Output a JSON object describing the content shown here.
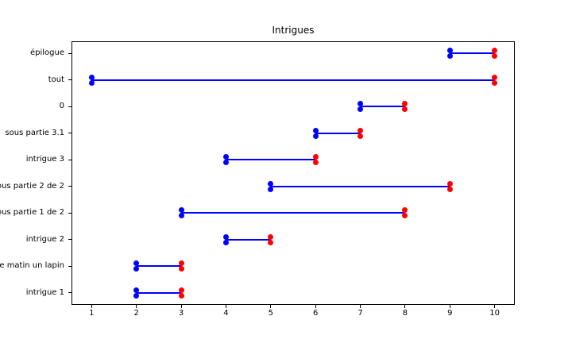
{
  "title": "Intrigues",
  "chart_data": {
    "type": "line",
    "variant": "horizontal-range-gantt",
    "title": "Intrigues",
    "categories_top_to_bottom": [
      "épilogue",
      "tout",
      "0",
      "sous partie 3.1",
      "intrigue 3",
      "ous partie 2 de 2",
      "ous partie 1 de 2",
      "intrigue 2",
      "e matin un lapin",
      "intrigue 1"
    ],
    "ranges_start_end": [
      [
        9,
        10
      ],
      [
        1,
        10
      ],
      [
        7,
        8
      ],
      [
        6,
        7
      ],
      [
        4,
        6
      ],
      [
        5,
        9
      ],
      [
        3,
        8
      ],
      [
        4,
        5
      ],
      [
        2,
        3
      ],
      [
        2,
        3
      ]
    ],
    "x_ticks": [
      1,
      2,
      3,
      4,
      5,
      6,
      7,
      8,
      9,
      10
    ],
    "xlim": [
      0.55,
      10.45
    ],
    "grid": false,
    "legend": null,
    "marker_style": "double dot above and below line at each endpoint",
    "colors": {
      "line": "#0000ff",
      "start_marker": "#0000ff",
      "end_marker": "#ff0000",
      "axis": "#000000",
      "text": "#000000",
      "background": "#ffffff"
    }
  }
}
